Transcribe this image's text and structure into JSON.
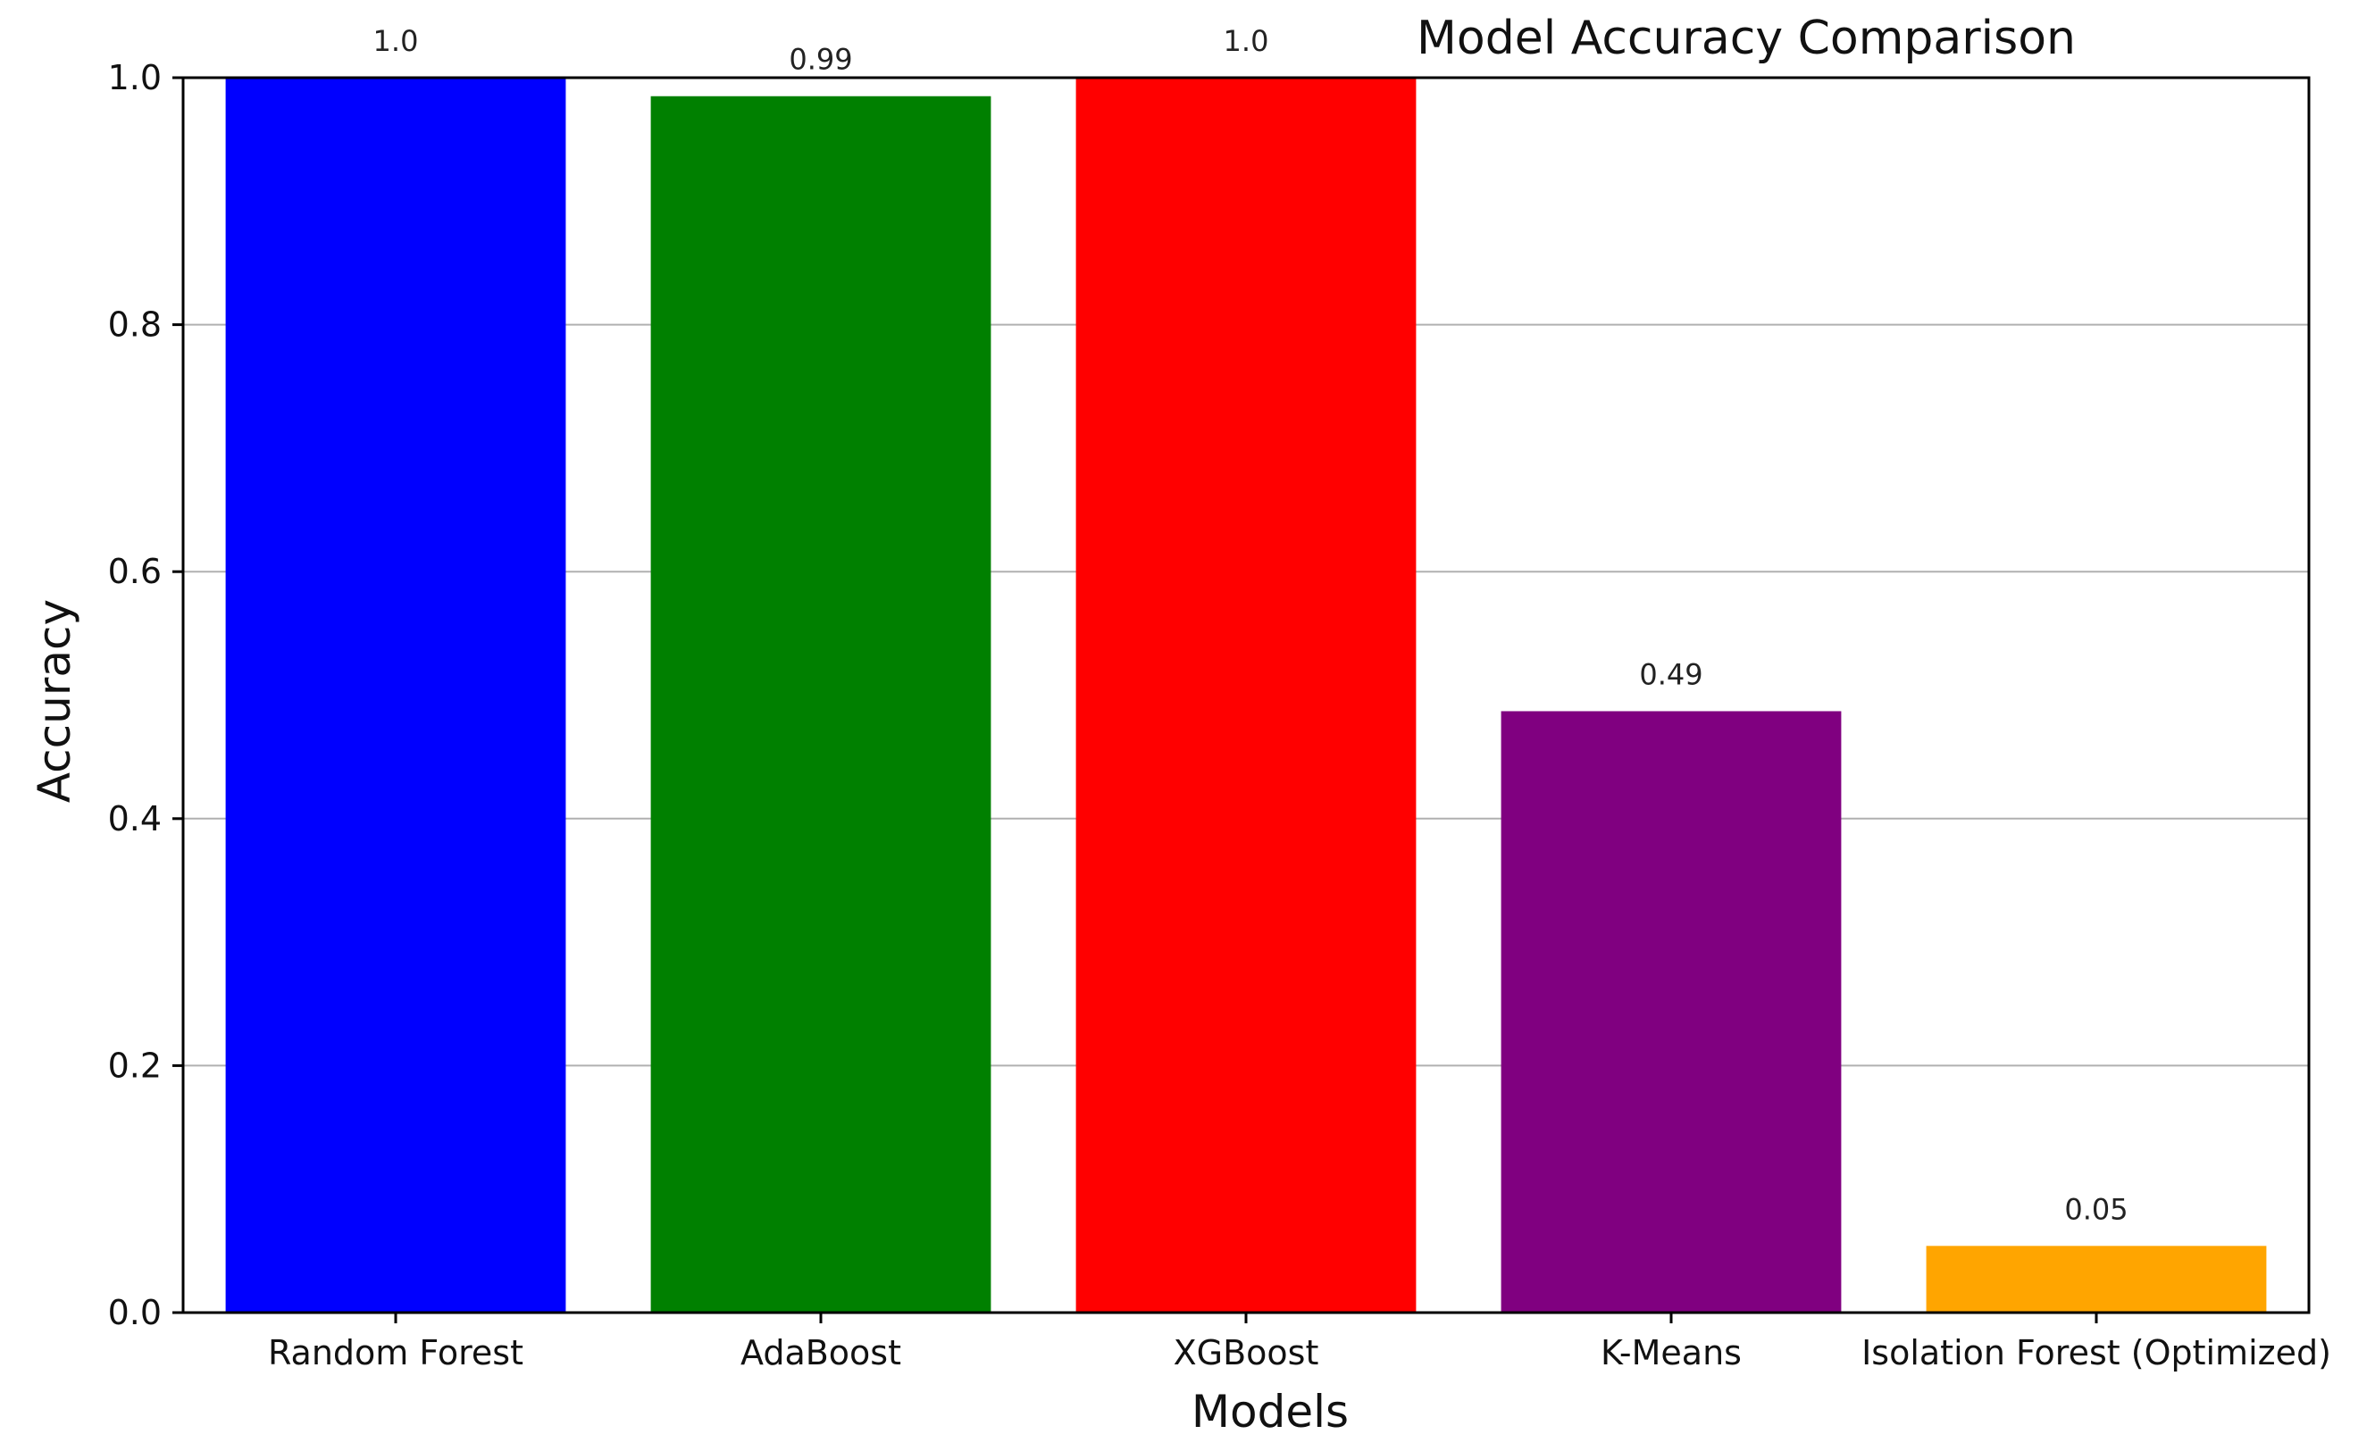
{
  "chart_data": {
    "type": "bar",
    "title": "Model Accuracy Comparison",
    "xlabel": "Models",
    "ylabel": "Accuracy",
    "categories": [
      "Random Forest",
      "AdaBoost",
      "XGBoost",
      "K-Means",
      "Isolation Forest (Optimized)"
    ],
    "values": [
      1.0,
      0.985,
      1.0,
      0.487,
      0.054
    ],
    "value_labels": [
      "1.0",
      "0.99",
      "1.0",
      "0.49",
      "0.05"
    ],
    "colors": [
      "#0000ff",
      "#008000",
      "#ff0000",
      "#800080",
      "#ffa500"
    ],
    "ylim": [
      0,
      1.0
    ],
    "yticks": [
      "0.0",
      "0.2",
      "0.4",
      "0.6",
      "0.8",
      "1.0"
    ],
    "grid": "y",
    "legend": "none"
  }
}
